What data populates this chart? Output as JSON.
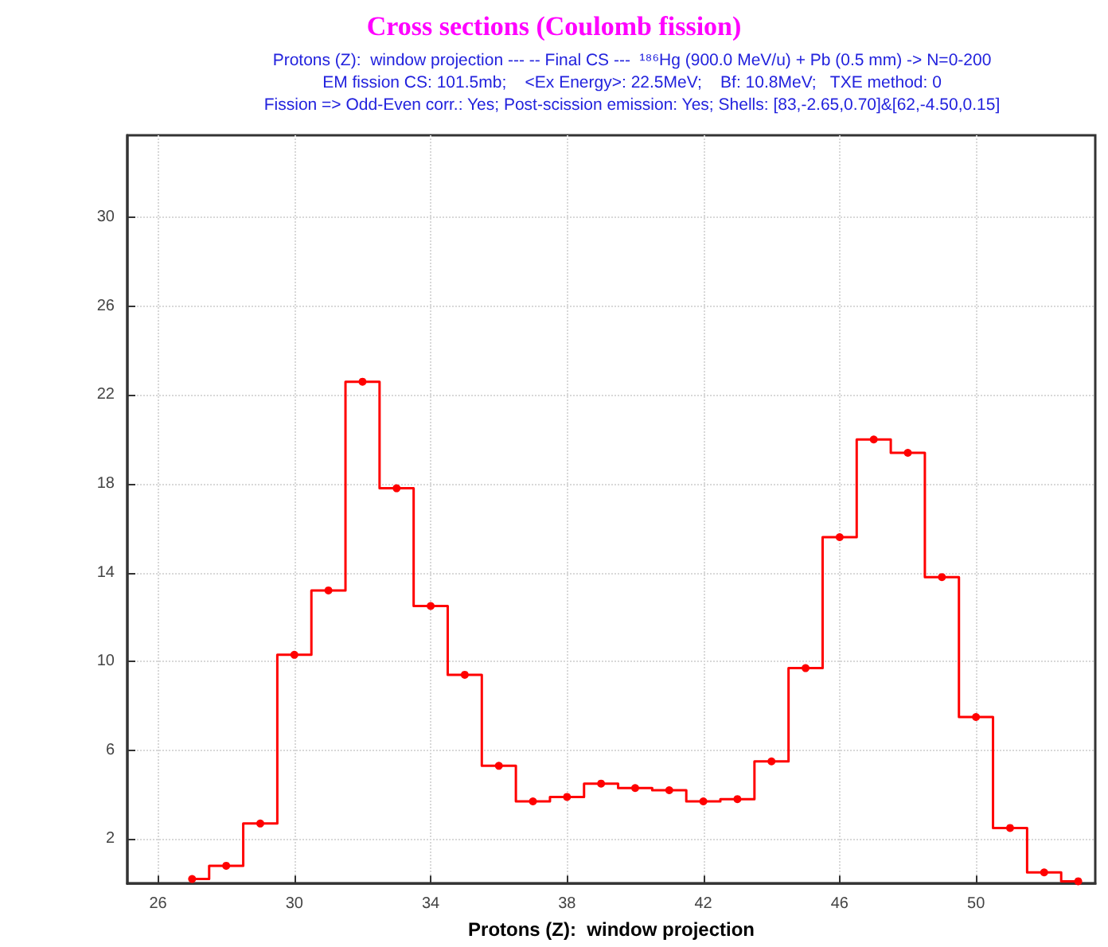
{
  "chart_data": {
    "type": "step",
    "title": "Cross sections (Coulomb fission)",
    "subtitle": "Protons (Z):  window projection --- -- Final CS ---  ¹⁸⁶Hg (900.0 MeV/u) + Pb (0.5 mm) -> N=0-200\nEM fission CS: 101.5mb;    <Ex Energy>: 22.5MeV;    Bf: 10.8MeV;   TXE method: 0\nFission => Odd-Even corr.: Yes; Post-scission emission: Yes; Shells: [83,-2.65,0.70]&[62,-4.50,0.15]",
    "xlabel": "Protons (Z):  window projection",
    "x": [
      27,
      28,
      29,
      30,
      31,
      32,
      33,
      34,
      35,
      36,
      37,
      38,
      39,
      40,
      41,
      42,
      43,
      44,
      45,
      46,
      47,
      48,
      49,
      50,
      51,
      52,
      53
    ],
    "series": [
      {
        "color": "#ff0000",
        "values": [
          0.2,
          0.8,
          2.7,
          10.3,
          13.2,
          22.6,
          17.8,
          12.5,
          9.4,
          5.3,
          3.7,
          3.9,
          4.5,
          4.3,
          4.2,
          3.7,
          3.8,
          5.5,
          9.7,
          15.6,
          20.0,
          19.4,
          13.8,
          7.5,
          2.5,
          0.5,
          0.1
        ]
      }
    ],
    "xlim": [
      25.1,
      53.5
    ],
    "xticks": [
      26,
      30,
      34,
      38,
      42,
      46,
      50
    ],
    "ylim": [
      0,
      33.7
    ],
    "yticks": [
      2,
      6,
      10,
      14,
      18,
      22,
      26,
      30
    ],
    "grid": true,
    "marker": "circle",
    "line_style": "solid"
  }
}
